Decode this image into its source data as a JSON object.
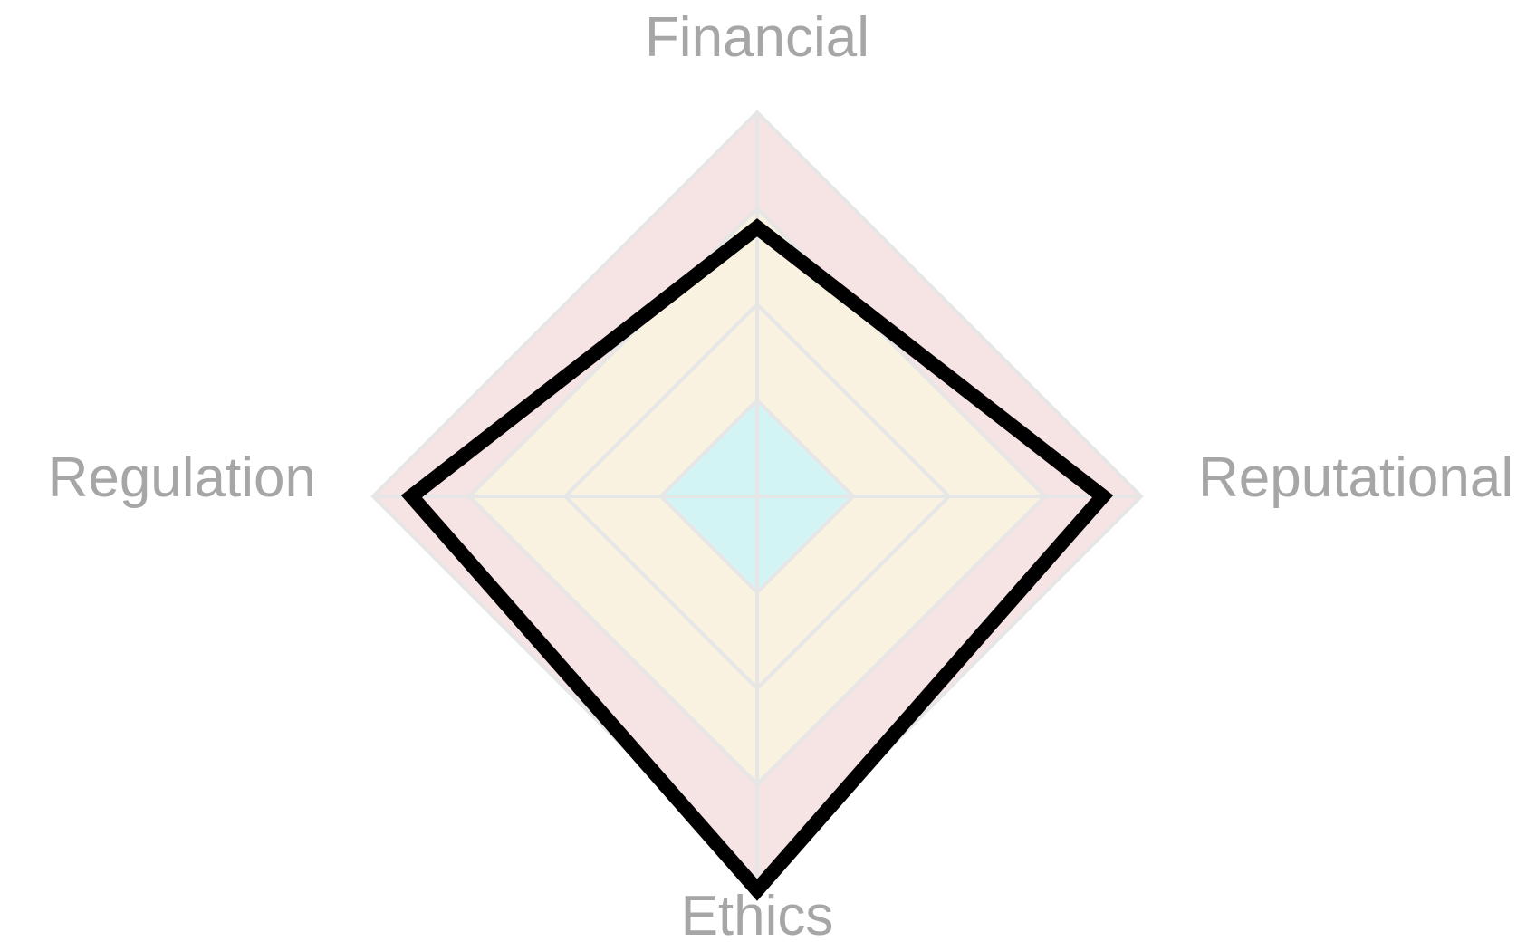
{
  "chart_data": {
    "type": "radar",
    "axes": [
      "Financial",
      "Reputational",
      "Ethics",
      "Regulation"
    ],
    "scale": {
      "min": 0,
      "max": 4,
      "rings": [
        1,
        2,
        3,
        4
      ]
    },
    "bands": [
      {
        "from": 0,
        "to": 1,
        "color": "#d3f4f4"
      },
      {
        "from": 1,
        "to": 3,
        "color": "#faf2e0"
      },
      {
        "from": 3,
        "to": 4,
        "color": "#f6e3e4"
      }
    ],
    "series": [
      {
        "values": [
          2.8,
          3.6,
          4.1,
          3.6
        ],
        "color": "#000000"
      }
    ]
  }
}
